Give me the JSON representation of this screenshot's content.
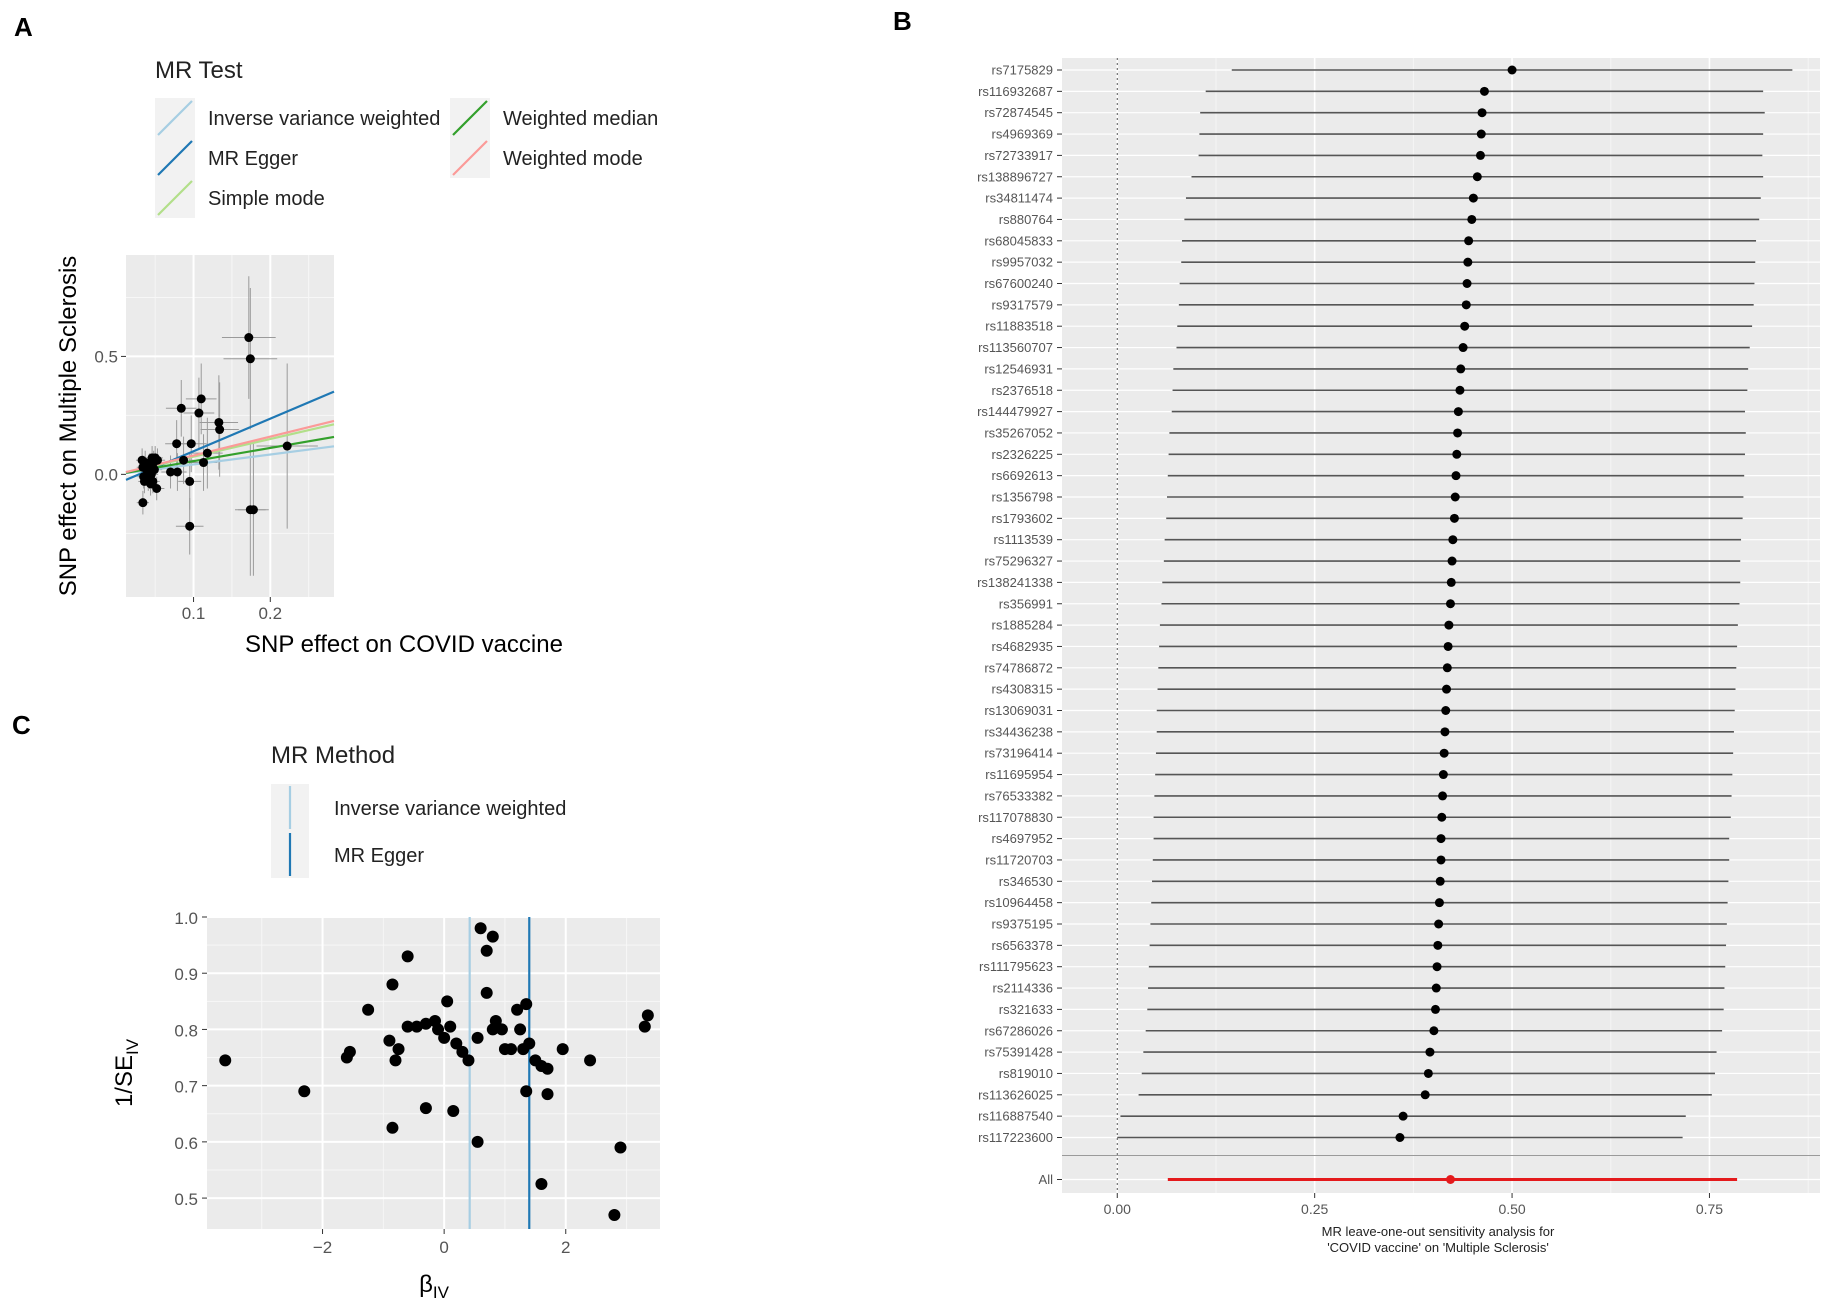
{
  "panels": {
    "a": "A",
    "b": "B",
    "c": "C"
  },
  "chart_data": [
    {
      "panel": "A",
      "type": "scatter",
      "title": "",
      "xlabel": "SNP effect on COVID vaccine",
      "ylabel": "SNP effect on Multiple Sclerosis",
      "xlim": [
        0.012,
        0.283
      ],
      "ylim": [
        -0.52,
        0.93
      ],
      "xticks": [
        0.1,
        0.2
      ],
      "xtick_labels": [
        "0.1",
        "0.2"
      ],
      "yticks": [
        0.0,
        0.5
      ],
      "ytick_labels": [
        "0.0",
        "0.5"
      ],
      "legend_title": "MR Test",
      "legend": [
        {
          "label": "Inverse variance weighted",
          "color": "#a6cee3"
        },
        {
          "label": "MR Egger",
          "color": "#1f78b4"
        },
        {
          "label": "Simple mode",
          "color": "#b2df8a"
        },
        {
          "label": "Weighted median",
          "color": "#33a02c"
        },
        {
          "label": "Weighted mode",
          "color": "#fb9a99"
        }
      ],
      "lines": [
        {
          "name": "Inverse variance weighted",
          "slope": 0.42,
          "intercept": 0.0,
          "color": "#a6cee3"
        },
        {
          "name": "MR Egger",
          "slope": 1.38,
          "intercept": -0.04,
          "color": "#1f78b4"
        },
        {
          "name": "Simple mode",
          "slope": 0.75,
          "intercept": 0.0,
          "color": "#b2df8a"
        },
        {
          "name": "Weighted median",
          "slope": 0.56,
          "intercept": 0.0,
          "color": "#33a02c"
        },
        {
          "name": "Weighted mode",
          "slope": 0.8,
          "intercept": 0.0,
          "color": "#fb9a99"
        }
      ],
      "points": [
        {
          "x": 0.033,
          "y": 0.06,
          "xerr": 0.008,
          "yerr": 0.05
        },
        {
          "x": 0.034,
          "y": 0.03,
          "xerr": 0.008,
          "yerr": 0.05
        },
        {
          "x": 0.035,
          "y": -0.01,
          "xerr": 0.008,
          "yerr": 0.05
        },
        {
          "x": 0.036,
          "y": -0.03,
          "xerr": 0.008,
          "yerr": 0.05
        },
        {
          "x": 0.034,
          "y": -0.12,
          "xerr": 0.008,
          "yerr": 0.05
        },
        {
          "x": 0.037,
          "y": 0.05,
          "xerr": 0.008,
          "yerr": 0.05
        },
        {
          "x": 0.039,
          "y": 0.02,
          "xerr": 0.008,
          "yerr": 0.05
        },
        {
          "x": 0.041,
          "y": -0.02,
          "xerr": 0.009,
          "yerr": 0.05
        },
        {
          "x": 0.043,
          "y": 0.04,
          "xerr": 0.009,
          "yerr": 0.05
        },
        {
          "x": 0.044,
          "y": -0.04,
          "xerr": 0.009,
          "yerr": 0.05
        },
        {
          "x": 0.045,
          "y": 0.0,
          "xerr": 0.009,
          "yerr": 0.05
        },
        {
          "x": 0.046,
          "y": 0.07,
          "xerr": 0.009,
          "yerr": 0.05
        },
        {
          "x": 0.047,
          "y": -0.03,
          "xerr": 0.009,
          "yerr": 0.05
        },
        {
          "x": 0.048,
          "y": 0.05,
          "xerr": 0.009,
          "yerr": 0.05
        },
        {
          "x": 0.049,
          "y": 0.02,
          "xerr": 0.01,
          "yerr": 0.05
        },
        {
          "x": 0.05,
          "y": 0.07,
          "xerr": 0.01,
          "yerr": 0.05
        },
        {
          "x": 0.052,
          "y": -0.06,
          "xerr": 0.01,
          "yerr": 0.05
        },
        {
          "x": 0.053,
          "y": 0.06,
          "xerr": 0.01,
          "yerr": 0.05
        },
        {
          "x": 0.07,
          "y": 0.01,
          "xerr": 0.012,
          "yerr": 0.07
        },
        {
          "x": 0.078,
          "y": 0.13,
          "xerr": 0.015,
          "yerr": 0.1
        },
        {
          "x": 0.079,
          "y": 0.01,
          "xerr": 0.012,
          "yerr": 0.08
        },
        {
          "x": 0.084,
          "y": 0.28,
          "xerr": 0.02,
          "yerr": 0.12
        },
        {
          "x": 0.087,
          "y": 0.06,
          "xerr": 0.015,
          "yerr": 0.1
        },
        {
          "x": 0.095,
          "y": -0.22,
          "xerr": 0.018,
          "yerr": 0.12
        },
        {
          "x": 0.095,
          "y": -0.03,
          "xerr": 0.015,
          "yerr": 0.12
        },
        {
          "x": 0.097,
          "y": 0.13,
          "xerr": 0.02,
          "yerr": 0.12
        },
        {
          "x": 0.107,
          "y": 0.26,
          "xerr": 0.02,
          "yerr": 0.15
        },
        {
          "x": 0.11,
          "y": 0.32,
          "xerr": 0.02,
          "yerr": 0.15
        },
        {
          "x": 0.113,
          "y": 0.05,
          "xerr": 0.018,
          "yerr": 0.12
        },
        {
          "x": 0.118,
          "y": 0.09,
          "xerr": 0.02,
          "yerr": 0.15
        },
        {
          "x": 0.133,
          "y": 0.22,
          "xerr": 0.025,
          "yerr": 0.2
        },
        {
          "x": 0.134,
          "y": 0.19,
          "xerr": 0.025,
          "yerr": 0.2
        },
        {
          "x": 0.172,
          "y": 0.58,
          "xerr": 0.035,
          "yerr": 0.26
        },
        {
          "x": 0.174,
          "y": 0.49,
          "xerr": 0.035,
          "yerr": 0.3
        },
        {
          "x": 0.174,
          "y": -0.15,
          "xerr": 0.02,
          "yerr": 0.28
        },
        {
          "x": 0.178,
          "y": -0.15,
          "xerr": 0.02,
          "yerr": 0.28
        },
        {
          "x": 0.222,
          "y": 0.12,
          "xerr": 0.04,
          "yerr": 0.35
        }
      ]
    },
    {
      "panel": "B",
      "type": "forest",
      "xlabel": "MR leave-one-out sensitivity analysis for\n'COVID vaccine' on 'Multiple Sclerosis'",
      "xlim": [
        -0.07,
        0.89
      ],
      "xticks": [
        0.0,
        0.25,
        0.5,
        0.75
      ],
      "xtick_labels": [
        "0.00",
        "0.25",
        "0.50",
        "0.75"
      ],
      "reference_line": 0.0,
      "summary": {
        "label": "All",
        "estimate": 0.422,
        "lower": 0.064,
        "upper": 0.785,
        "color": "#e41a1c"
      },
      "rows": [
        {
          "label": "rs7175829",
          "estimate": 0.5,
          "lower": 0.145,
          "upper": 0.855
        },
        {
          "label": "rs116932687",
          "estimate": 0.465,
          "lower": 0.112,
          "upper": 0.818
        },
        {
          "label": "rs72874545",
          "estimate": 0.462,
          "lower": 0.105,
          "upper": 0.82
        },
        {
          "label": "rs4969369",
          "estimate": 0.461,
          "lower": 0.104,
          "upper": 0.818
        },
        {
          "label": "rs72733917",
          "estimate": 0.46,
          "lower": 0.103,
          "upper": 0.817
        },
        {
          "label": "rs138896727",
          "estimate": 0.456,
          "lower": 0.094,
          "upper": 0.818
        },
        {
          "label": "rs34811474",
          "estimate": 0.451,
          "lower": 0.087,
          "upper": 0.815
        },
        {
          "label": "rs880764",
          "estimate": 0.449,
          "lower": 0.085,
          "upper": 0.813
        },
        {
          "label": "rs68045833",
          "estimate": 0.445,
          "lower": 0.082,
          "upper": 0.809
        },
        {
          "label": "rs9957032",
          "estimate": 0.444,
          "lower": 0.081,
          "upper": 0.808
        },
        {
          "label": "rs67600240",
          "estimate": 0.443,
          "lower": 0.079,
          "upper": 0.807
        },
        {
          "label": "rs9317579",
          "estimate": 0.442,
          "lower": 0.078,
          "upper": 0.806
        },
        {
          "label": "rs11883518",
          "estimate": 0.44,
          "lower": 0.076,
          "upper": 0.804
        },
        {
          "label": "rs113560707",
          "estimate": 0.438,
          "lower": 0.075,
          "upper": 0.801
        },
        {
          "label": "rs12546931",
          "estimate": 0.435,
          "lower": 0.071,
          "upper": 0.799
        },
        {
          "label": "rs2376518",
          "estimate": 0.434,
          "lower": 0.07,
          "upper": 0.798
        },
        {
          "label": "rs144479927",
          "estimate": 0.432,
          "lower": 0.069,
          "upper": 0.795
        },
        {
          "label": "rs35267052",
          "estimate": 0.431,
          "lower": 0.066,
          "upper": 0.796
        },
        {
          "label": "rs2326225",
          "estimate": 0.43,
          "lower": 0.065,
          "upper": 0.795
        },
        {
          "label": "rs6692613",
          "estimate": 0.429,
          "lower": 0.064,
          "upper": 0.794
        },
        {
          "label": "rs1356798",
          "estimate": 0.428,
          "lower": 0.063,
          "upper": 0.793
        },
        {
          "label": "rs1793602",
          "estimate": 0.427,
          "lower": 0.062,
          "upper": 0.792
        },
        {
          "label": "rs1113539",
          "estimate": 0.425,
          "lower": 0.06,
          "upper": 0.79
        },
        {
          "label": "rs75296327",
          "estimate": 0.424,
          "lower": 0.059,
          "upper": 0.789
        },
        {
          "label": "rs138241338",
          "estimate": 0.423,
          "lower": 0.057,
          "upper": 0.789
        },
        {
          "label": "rs356991",
          "estimate": 0.422,
          "lower": 0.056,
          "upper": 0.788
        },
        {
          "label": "rs1885284",
          "estimate": 0.42,
          "lower": 0.054,
          "upper": 0.786
        },
        {
          "label": "rs4682935",
          "estimate": 0.419,
          "lower": 0.053,
          "upper": 0.785
        },
        {
          "label": "rs74786872",
          "estimate": 0.418,
          "lower": 0.052,
          "upper": 0.784
        },
        {
          "label": "rs4308315",
          "estimate": 0.417,
          "lower": 0.051,
          "upper": 0.783
        },
        {
          "label": "rs13069031",
          "estimate": 0.416,
          "lower": 0.05,
          "upper": 0.782
        },
        {
          "label": "rs34436238",
          "estimate": 0.415,
          "lower": 0.05,
          "upper": 0.781
        },
        {
          "label": "rs73196414",
          "estimate": 0.414,
          "lower": 0.049,
          "upper": 0.78
        },
        {
          "label": "rs11695954",
          "estimate": 0.413,
          "lower": 0.048,
          "upper": 0.779
        },
        {
          "label": "rs76533382",
          "estimate": 0.412,
          "lower": 0.047,
          "upper": 0.778
        },
        {
          "label": "rs117078830",
          "estimate": 0.411,
          "lower": 0.046,
          "upper": 0.777
        },
        {
          "label": "rs4697952",
          "estimate": 0.41,
          "lower": 0.046,
          "upper": 0.775
        },
        {
          "label": "rs11720703",
          "estimate": 0.41,
          "lower": 0.045,
          "upper": 0.775
        },
        {
          "label": "rs346530",
          "estimate": 0.409,
          "lower": 0.044,
          "upper": 0.774
        },
        {
          "label": "rs10964458",
          "estimate": 0.408,
          "lower": 0.043,
          "upper": 0.773
        },
        {
          "label": "rs9375195",
          "estimate": 0.407,
          "lower": 0.042,
          "upper": 0.772
        },
        {
          "label": "rs6563378",
          "estimate": 0.406,
          "lower": 0.041,
          "upper": 0.771
        },
        {
          "label": "rs111795623",
          "estimate": 0.405,
          "lower": 0.04,
          "upper": 0.77
        },
        {
          "label": "rs2114336",
          "estimate": 0.404,
          "lower": 0.039,
          "upper": 0.769
        },
        {
          "label": "rs321633",
          "estimate": 0.403,
          "lower": 0.038,
          "upper": 0.768
        },
        {
          "label": "rs67286026",
          "estimate": 0.401,
          "lower": 0.036,
          "upper": 0.766
        },
        {
          "label": "rs75391428",
          "estimate": 0.396,
          "lower": 0.033,
          "upper": 0.759
        },
        {
          "label": "rs819010",
          "estimate": 0.394,
          "lower": 0.031,
          "upper": 0.757
        },
        {
          "label": "rs113626025",
          "estimate": 0.39,
          "lower": 0.027,
          "upper": 0.753
        },
        {
          "label": "rs116887540",
          "estimate": 0.362,
          "lower": 0.004,
          "upper": 0.72
        },
        {
          "label": "rs117223600",
          "estimate": 0.358,
          "lower": 0.0,
          "upper": 0.716
        }
      ]
    },
    {
      "panel": "C",
      "type": "scatter",
      "title": "",
      "xlabel": "β",
      "xlabel_sub": "IV",
      "ylabel": "1/SE",
      "ylabel_sub": "IV",
      "xlim": [
        -3.9,
        3.55
      ],
      "ylim": [
        0.445,
        1.0
      ],
      "xticks": [
        -2,
        0,
        2
      ],
      "xtick_labels": [
        "−2",
        "0",
        "2"
      ],
      "yticks": [
        0.5,
        0.6,
        0.7,
        0.8,
        0.9,
        1.0
      ],
      "ytick_labels": [
        "0.5",
        "0.6",
        "0.7",
        "0.8",
        "0.9",
        "1.0"
      ],
      "legend_title": "MR Method",
      "legend": [
        {
          "label": "Inverse variance weighted",
          "color": "#a6cee3"
        },
        {
          "label": "MR Egger",
          "color": "#1f78b4"
        }
      ],
      "vlines": [
        {
          "name": "Inverse variance weighted",
          "x": 0.42,
          "color": "#a6cee3"
        },
        {
          "name": "MR Egger",
          "x": 1.4,
          "color": "#1f78b4"
        }
      ],
      "points": [
        {
          "x": -3.6,
          "y": 0.745
        },
        {
          "x": -2.3,
          "y": 0.69
        },
        {
          "x": -1.6,
          "y": 0.75
        },
        {
          "x": -1.55,
          "y": 0.76
        },
        {
          "x": -1.25,
          "y": 0.835
        },
        {
          "x": -0.9,
          "y": 0.78
        },
        {
          "x": -0.85,
          "y": 0.88
        },
        {
          "x": -0.85,
          "y": 0.625
        },
        {
          "x": -0.8,
          "y": 0.745
        },
        {
          "x": -0.75,
          "y": 0.765
        },
        {
          "x": -0.6,
          "y": 0.93
        },
        {
          "x": -0.6,
          "y": 0.805
        },
        {
          "x": -0.45,
          "y": 0.805
        },
        {
          "x": -0.3,
          "y": 0.81
        },
        {
          "x": -0.3,
          "y": 0.66
        },
        {
          "x": -0.15,
          "y": 0.815
        },
        {
          "x": -0.1,
          "y": 0.8
        },
        {
          "x": 0.0,
          "y": 0.785
        },
        {
          "x": 0.05,
          "y": 0.85
        },
        {
          "x": 0.1,
          "y": 0.805
        },
        {
          "x": 0.15,
          "y": 0.655
        },
        {
          "x": 0.2,
          "y": 0.775
        },
        {
          "x": 0.3,
          "y": 0.76
        },
        {
          "x": 0.4,
          "y": 0.745
        },
        {
          "x": 0.55,
          "y": 0.6
        },
        {
          "x": 0.55,
          "y": 0.785
        },
        {
          "x": 0.6,
          "y": 0.98
        },
        {
          "x": 0.7,
          "y": 0.94
        },
        {
          "x": 0.7,
          "y": 0.865
        },
        {
          "x": 0.8,
          "y": 0.965
        },
        {
          "x": 0.8,
          "y": 0.8
        },
        {
          "x": 0.85,
          "y": 0.815
        },
        {
          "x": 0.95,
          "y": 0.8
        },
        {
          "x": 1.0,
          "y": 0.765
        },
        {
          "x": 1.1,
          "y": 0.765
        },
        {
          "x": 1.2,
          "y": 0.835
        },
        {
          "x": 1.25,
          "y": 0.8
        },
        {
          "x": 1.3,
          "y": 0.765
        },
        {
          "x": 1.35,
          "y": 0.845
        },
        {
          "x": 1.35,
          "y": 0.69
        },
        {
          "x": 1.4,
          "y": 0.775
        },
        {
          "x": 1.5,
          "y": 0.745
        },
        {
          "x": 1.6,
          "y": 0.525
        },
        {
          "x": 1.6,
          "y": 0.735
        },
        {
          "x": 1.7,
          "y": 0.685
        },
        {
          "x": 1.7,
          "y": 0.73
        },
        {
          "x": 1.95,
          "y": 0.765
        },
        {
          "x": 2.4,
          "y": 0.745
        },
        {
          "x": 2.8,
          "y": 0.47
        },
        {
          "x": 2.9,
          "y": 0.59
        },
        {
          "x": 3.3,
          "y": 0.805
        },
        {
          "x": 3.35,
          "y": 0.825
        }
      ]
    }
  ]
}
